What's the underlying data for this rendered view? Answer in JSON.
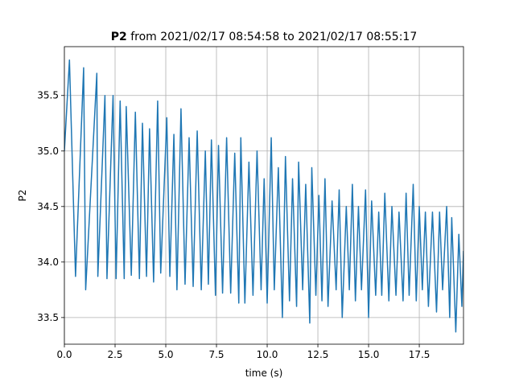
{
  "chart_data": {
    "type": "line",
    "title": {
      "variable": "P2",
      "text": "from 2021/02/17 08:54:58 to 2021/02/17 08:55:17"
    },
    "x_label": "time (s)",
    "y_label": "P2",
    "xlim": [
      0,
      19.68
    ],
    "ylim": [
      33.26,
      35.94
    ],
    "xticks": [
      {
        "value": 0,
        "label": "0.0"
      },
      2.5,
      {
        "value": 5,
        "label": "5.0"
      },
      7.5,
      {
        "value": 10,
        "label": "10.0"
      },
      12.5,
      {
        "value": 15,
        "label": "15.0"
      },
      17.5
    ],
    "yticks": [
      33.5,
      {
        "value": 34,
        "label": "34.0"
      },
      34.5,
      {
        "value": 35,
        "label": "35.0"
      },
      35.5
    ],
    "grid": true,
    "series": [
      {
        "color": "#1f77b4",
        "x": [
          0,
          0.25,
          0.55,
          0.95,
          1.05,
          1.6,
          1.65,
          2.0,
          2.1,
          2.4,
          2.55,
          2.75,
          2.95,
          3.05,
          3.3,
          3.5,
          3.7,
          3.85,
          4.05,
          4.2,
          4.4,
          4.6,
          4.75,
          5.05,
          5.2,
          5.4,
          5.55,
          5.75,
          5.95,
          6.15,
          6.35,
          6.55,
          6.75,
          6.95,
          7.1,
          7.25,
          7.45,
          7.6,
          7.8,
          8.0,
          8.2,
          8.4,
          8.6,
          8.7,
          8.9,
          9.1,
          9.3,
          9.5,
          9.7,
          9.85,
          10.0,
          10.2,
          10.35,
          10.55,
          10.75,
          10.9,
          11.1,
          11.25,
          11.45,
          11.55,
          11.75,
          11.9,
          12.1,
          12.2,
          12.4,
          12.55,
          12.7,
          12.85,
          13.0,
          13.2,
          13.4,
          13.55,
          13.7,
          13.9,
          14.05,
          14.2,
          14.35,
          14.5,
          14.65,
          14.85,
          15.0,
          15.15,
          15.35,
          15.5,
          15.65,
          15.8,
          16.0,
          16.15,
          16.35,
          16.5,
          16.7,
          16.85,
          17.0,
          17.2,
          17.35,
          17.5,
          17.65,
          17.8,
          17.95,
          18.15,
          18.35,
          18.5,
          18.65,
          18.85,
          19.0,
          19.1,
          19.3,
          19.45,
          19.6,
          19.68
        ],
        "values": [
          35.0,
          35.82,
          33.87,
          35.75,
          33.75,
          35.7,
          33.87,
          35.5,
          33.85,
          35.5,
          33.85,
          35.45,
          33.85,
          35.4,
          33.88,
          35.35,
          33.85,
          35.25,
          33.87,
          35.2,
          33.82,
          35.45,
          33.9,
          35.3,
          33.87,
          35.15,
          33.75,
          35.38,
          33.8,
          35.12,
          33.78,
          35.18,
          33.75,
          35.0,
          33.8,
          35.1,
          33.7,
          35.05,
          33.72,
          35.12,
          33.72,
          34.98,
          33.63,
          35.12,
          33.63,
          34.9,
          33.7,
          35.0,
          33.75,
          34.75,
          33.63,
          35.12,
          33.75,
          34.85,
          33.5,
          34.95,
          33.65,
          34.75,
          33.6,
          34.9,
          33.75,
          34.7,
          33.45,
          34.85,
          33.7,
          34.6,
          33.65,
          34.75,
          33.6,
          34.55,
          33.75,
          34.65,
          33.5,
          34.5,
          33.75,
          34.7,
          33.65,
          34.5,
          33.75,
          34.65,
          33.5,
          34.55,
          33.7,
          34.45,
          33.7,
          34.62,
          33.65,
          34.5,
          33.7,
          34.45,
          33.65,
          34.62,
          33.7,
          34.7,
          33.65,
          34.5,
          33.75,
          34.45,
          33.6,
          34.45,
          33.55,
          34.45,
          33.75,
          34.5,
          33.5,
          34.4,
          33.37,
          34.25,
          33.6,
          34.1
        ]
      }
    ]
  }
}
